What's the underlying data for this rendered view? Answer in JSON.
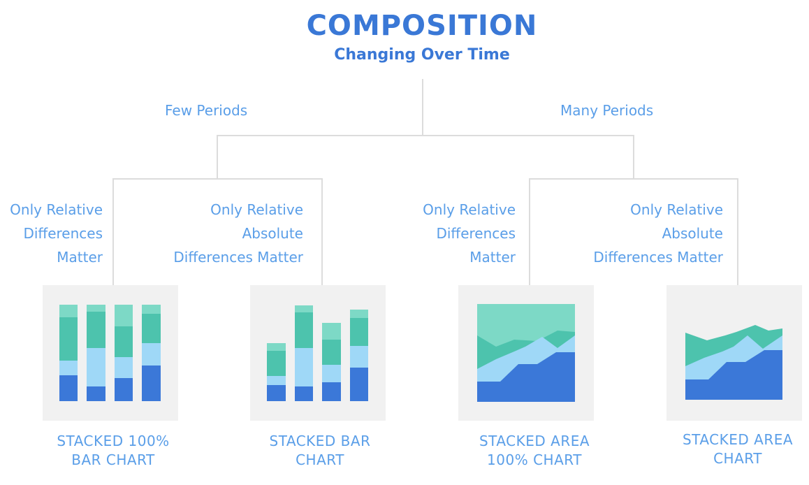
{
  "title": "COMPOSITION",
  "subtitle": "Changing Over Time",
  "branches": {
    "few": "Few Periods",
    "many": "Many Periods"
  },
  "leaves": [
    {
      "lines": [
        "Only Relative",
        "Differences",
        "Matter"
      ],
      "caption": [
        "STACKED 100%",
        "BAR CHART"
      ]
    },
    {
      "lines": [
        "Only Relative",
        "Absolute",
        "Differences Matter"
      ],
      "caption": [
        "STACKED BAR",
        "CHART"
      ]
    },
    {
      "lines": [
        "Only Relative",
        "Differences",
        "Matter"
      ],
      "caption": [
        "STACKED AREA",
        "100% CHART"
      ]
    },
    {
      "lines": [
        "Only Relative",
        "Absolute",
        "Differences Matter"
      ],
      "caption": [
        "STACKED AREA",
        "CHART"
      ]
    }
  ],
  "colors": {
    "title": "#3a78d6",
    "label": "#5a9ee8",
    "connector": "#dcdcdc",
    "panel": "#f1f1f1",
    "layer_bottom": "#3b78d8",
    "layer_light": "#9fd8f7",
    "layer_teal": "#4dc3ad",
    "layer_mint": "#7dd9c6"
  }
}
